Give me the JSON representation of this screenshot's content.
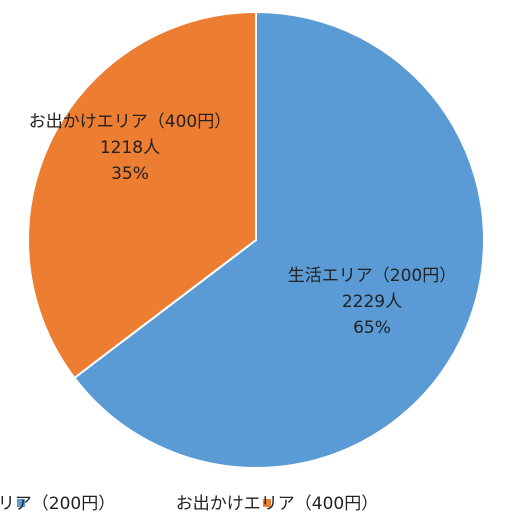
{
  "chart_data": {
    "type": "pie",
    "categories": [
      "生活エリア（200円）",
      "お出かけエリア（400円）"
    ],
    "values": [
      2229,
      1218
    ],
    "value_labels": [
      "2229人",
      "1218人"
    ],
    "percent_labels": [
      "65%",
      "35%"
    ],
    "colors": [
      "#5b9bd5",
      "#ed7d31"
    ],
    "legend": "bottom"
  }
}
